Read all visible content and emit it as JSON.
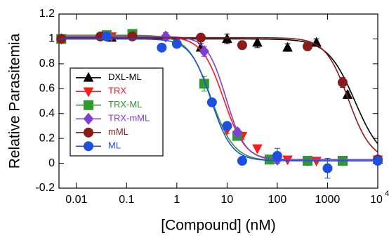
{
  "chart_data": {
    "type": "scatter",
    "xlabel": "[Compound] (nM)",
    "ylabel": "Relative Parasitemia",
    "xscale": "log",
    "xlim": [
      0.0045,
      10000
    ],
    "ylim": [
      -0.2,
      1.2
    ],
    "xticks": [
      0.01,
      0.1,
      1,
      10,
      100,
      1000,
      {
        "value": 10000,
        "label": "10",
        "exponent": "4"
      }
    ],
    "yticks": [
      -0.2,
      0,
      0.2,
      0.4,
      0.6,
      0.8,
      1,
      1.2
    ],
    "legend": "lower left",
    "series": [
      {
        "name": "DXL-ML",
        "color": "#000000",
        "marker": "triangle",
        "x": [
          0.005,
          0.05,
          3,
          10,
          40,
          160,
          600,
          2500,
          10000
        ],
        "values": [
          1.0,
          1.01,
          0.93,
          1.0,
          0.97,
          0.93,
          0.97,
          0.55,
          0.03
        ],
        "errors": [
          null,
          null,
          0.03,
          0.04,
          0.04,
          0.03,
          0.03,
          0.03,
          0.03
        ],
        "fit": {
          "top": 1.0,
          "bottom": 0.0,
          "ec50": 3500,
          "hill": 1.6
        }
      },
      {
        "name": "TRX",
        "color": "#ff1a1a",
        "marker": "triangle-down",
        "x": [
          0.005,
          0.05,
          10,
          20,
          40,
          160,
          400,
          600,
          2000,
          10000
        ],
        "values": [
          1.0,
          1.02,
          0.27,
          0.22,
          0.12,
          0.03,
          0.02,
          0.02,
          0.02,
          0.03
        ],
        "errors": [
          null,
          null,
          0.03,
          0.03,
          null,
          null,
          null,
          null,
          null,
          null
        ],
        "fit": {
          "top": 1.02,
          "bottom": 0.02,
          "ec50": 8.5,
          "hill": 2.0
        }
      },
      {
        "name": "TRX-ML",
        "color": "#2e9a2e",
        "marker": "square",
        "x": [
          0.005,
          0.04,
          0.13,
          3.5,
          16,
          70,
          400,
          2000
        ],
        "values": [
          1.0,
          1.03,
          1.04,
          0.64,
          0.22,
          0.03,
          0.02,
          0.02
        ],
        "errors": [
          null,
          null,
          null,
          0.06,
          0.03,
          null,
          null,
          null
        ],
        "fit": {
          "top": 1.03,
          "bottom": 0.02,
          "ec50": 4.8,
          "hill": 1.9
        }
      },
      {
        "name": "TRX-mML",
        "color": "#7f3fd4",
        "marker": "diamond",
        "x": [
          0.6,
          3.5,
          16,
          100,
          10000
        ],
        "values": [
          1.02,
          0.9,
          0.25,
          0.03,
          0.03
        ],
        "errors": [
          0.03,
          0.04,
          0.03,
          null,
          null
        ],
        "fit": {
          "top": 1.02,
          "bottom": 0.03,
          "ec50": 9.5,
          "hill": 2.3
        }
      },
      {
        "name": "mML",
        "color": "#8b1a1a",
        "marker": "circle",
        "x": [
          0.005,
          0.03,
          0.13,
          3,
          20,
          400,
          2000,
          10000
        ],
        "values": [
          1.0,
          1.02,
          1.02,
          1.01,
          0.95,
          0.94,
          0.65,
          0.03
        ],
        "errors": [
          null,
          null,
          null,
          null,
          null,
          0.03,
          0.04,
          0.03
        ],
        "fit": {
          "top": 1.01,
          "bottom": 0.02,
          "ec50": 2600,
          "hill": 1.9
        }
      },
      {
        "name": "ML",
        "color": "#1f4fe0",
        "marker": "circle",
        "x": [
          0.04,
          0.5,
          1,
          5,
          10,
          20,
          100,
          1000,
          10000
        ],
        "values": [
          1.02,
          0.93,
          0.96,
          0.49,
          0.3,
          0.02,
          0.06,
          -0.04,
          0.02
        ],
        "errors": [
          null,
          null,
          null,
          null,
          null,
          null,
          0.06,
          0.08,
          null
        ],
        "fit": {
          "top": 1.0,
          "bottom": 0.02,
          "ec50": 4.8,
          "hill": 2.1
        }
      }
    ]
  }
}
